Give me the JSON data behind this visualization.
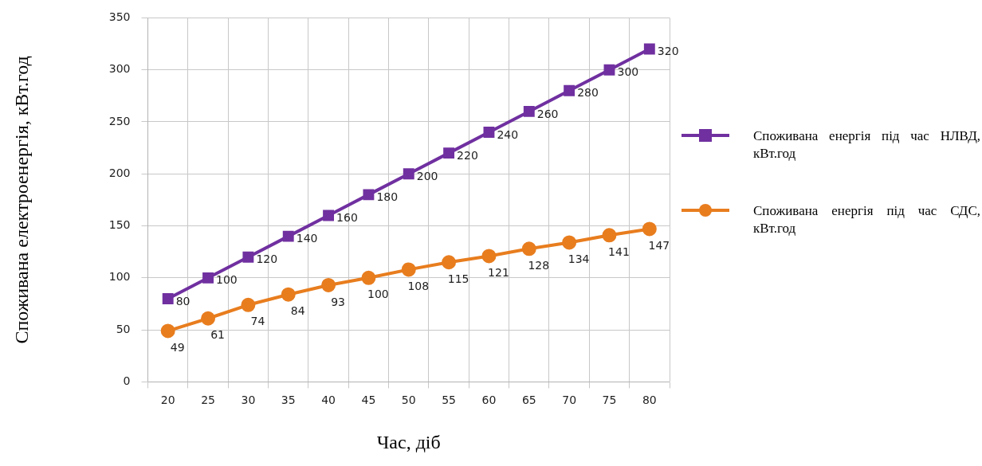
{
  "chart_data": {
    "type": "line",
    "xlabel": "Час, діб",
    "ylabel": "Споживана електроенергія, кВт.год",
    "categories": [
      "20",
      "25",
      "30",
      "35",
      "40",
      "45",
      "50",
      "55",
      "60",
      "65",
      "70",
      "75",
      "80"
    ],
    "ylim": [
      0,
      350
    ],
    "yticks": [
      0,
      50,
      100,
      150,
      200,
      250,
      300,
      350
    ],
    "grid": true,
    "legend": "right",
    "data_labels": true,
    "series": [
      {
        "name": "Споживана енергія під час НЛВД, кВт.год",
        "color": "#7030a0",
        "marker": "square",
        "values": [
          80,
          100,
          120,
          140,
          160,
          180,
          200,
          220,
          240,
          260,
          280,
          300,
          320
        ]
      },
      {
        "name": "Споживана енергія під час СДС, кВт.год",
        "color": "#e87d1e",
        "marker": "circle",
        "values": [
          49,
          61,
          74,
          84,
          93,
          100,
          108,
          115,
          121,
          128,
          134,
          141,
          147
        ]
      }
    ]
  }
}
